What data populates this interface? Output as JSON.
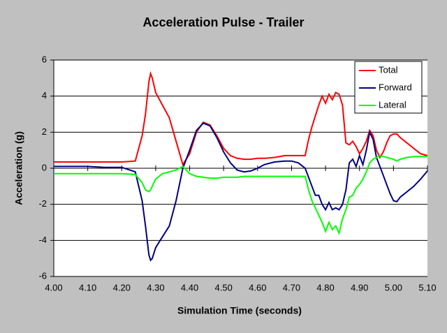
{
  "chart_data": {
    "type": "line",
    "title": "Acceleration Pulse - Trailer",
    "x_label": "Simulation Time (seconds)",
    "y_label": "Acceleration (g)",
    "x": [
      4.0,
      4.05,
      4.1,
      4.15,
      4.2,
      4.24,
      4.26,
      4.27,
      4.28,
      4.285,
      4.29,
      4.3,
      4.32,
      4.34,
      4.36,
      4.38,
      4.4,
      4.42,
      4.44,
      4.46,
      4.48,
      4.5,
      4.52,
      4.54,
      4.56,
      4.58,
      4.6,
      4.62,
      4.65,
      4.68,
      4.7,
      4.72,
      4.74,
      4.75,
      4.76,
      4.77,
      4.78,
      4.79,
      4.8,
      4.81,
      4.82,
      4.83,
      4.84,
      4.85,
      4.86,
      4.87,
      4.88,
      4.89,
      4.9,
      4.91,
      4.92,
      4.93,
      4.94,
      4.95,
      4.96,
      4.97,
      4.98,
      4.99,
      5.0,
      5.01,
      5.02,
      5.04,
      5.06,
      5.08,
      5.1
    ],
    "series": [
      {
        "name": "Total",
        "color": "#ff0000",
        "values": [
          0.35,
          0.35,
          0.35,
          0.35,
          0.35,
          0.4,
          1.8,
          3.0,
          4.8,
          5.25,
          5.0,
          4.2,
          3.5,
          2.8,
          1.5,
          0.2,
          0.8,
          2.0,
          2.55,
          2.4,
          1.8,
          1.1,
          0.7,
          0.55,
          0.5,
          0.5,
          0.55,
          0.55,
          0.6,
          0.7,
          0.7,
          0.7,
          0.7,
          1.6,
          2.3,
          2.9,
          3.5,
          4.0,
          3.6,
          4.1,
          3.8,
          4.2,
          4.1,
          3.5,
          1.4,
          1.3,
          1.5,
          1.2,
          0.8,
          1.1,
          1.5,
          2.1,
          1.8,
          1.0,
          0.6,
          0.9,
          1.4,
          1.8,
          1.9,
          1.9,
          1.7,
          1.4,
          1.1,
          0.8,
          0.7
        ]
      },
      {
        "name": "Forward",
        "color": "#000080",
        "values": [
          0.1,
          0.1,
          0.1,
          0.05,
          0.05,
          -0.2,
          -1.8,
          -3.2,
          -4.8,
          -5.1,
          -5.0,
          -4.4,
          -3.8,
          -3.2,
          -1.8,
          0.0,
          1.0,
          2.1,
          2.5,
          2.35,
          1.7,
          0.9,
          0.3,
          -0.1,
          -0.2,
          -0.15,
          0.0,
          0.2,
          0.35,
          0.4,
          0.4,
          0.3,
          0.0,
          -0.5,
          -1.0,
          -1.5,
          -1.5,
          -2.0,
          -2.3,
          -1.9,
          -2.3,
          -2.2,
          -2.3,
          -2.0,
          -1.2,
          0.3,
          0.5,
          0.1,
          0.7,
          0.2,
          1.0,
          2.0,
          1.6,
          0.6,
          0.1,
          -0.4,
          -0.9,
          -1.4,
          -1.8,
          -1.85,
          -1.6,
          -1.3,
          -1.0,
          -0.6,
          -0.15
        ]
      },
      {
        "name": "Lateral",
        "color": "#00ff00",
        "values": [
          -0.3,
          -0.3,
          -0.3,
          -0.3,
          -0.3,
          -0.35,
          -0.8,
          -1.2,
          -1.3,
          -1.2,
          -1.0,
          -0.6,
          -0.3,
          -0.2,
          -0.1,
          0.1,
          -0.3,
          -0.45,
          -0.5,
          -0.55,
          -0.55,
          -0.5,
          -0.5,
          -0.5,
          -0.45,
          -0.45,
          -0.45,
          -0.45,
          -0.45,
          -0.45,
          -0.45,
          -0.45,
          -0.45,
          -1.2,
          -1.8,
          -2.2,
          -2.6,
          -3.0,
          -3.5,
          -3.0,
          -3.4,
          -3.2,
          -3.6,
          -2.8,
          -2.3,
          -1.6,
          -1.5,
          -1.1,
          -0.9,
          -0.6,
          -0.2,
          0.3,
          0.5,
          0.6,
          0.7,
          0.65,
          0.6,
          0.55,
          0.5,
          0.4,
          0.5,
          0.6,
          0.65,
          0.65,
          0.65
        ]
      }
    ],
    "xlim": [
      4.0,
      5.1
    ],
    "xticks": [
      {
        "value": 4.0,
        "label": "4.00"
      },
      {
        "value": 4.1,
        "label": "4.10"
      },
      {
        "value": 4.2,
        "label": "4.20"
      },
      {
        "value": 4.3,
        "label": "4.30"
      },
      {
        "value": 4.4,
        "label": "4.40"
      },
      {
        "value": 4.5,
        "label": "4.50"
      },
      {
        "value": 4.6,
        "label": "4.60"
      },
      {
        "value": 4.7,
        "label": "4.70"
      },
      {
        "value": 4.8,
        "label": "4.80"
      },
      {
        "value": 4.9,
        "label": "4.90"
      },
      {
        "value": 5.0,
        "label": "5.00"
      },
      {
        "value": 5.1,
        "label": "5.10"
      }
    ],
    "ylim": [
      -6,
      6
    ],
    "yticks": [
      -6,
      -4,
      -2,
      0,
      2,
      4,
      6
    ],
    "grid": true,
    "legend": "top-right"
  }
}
